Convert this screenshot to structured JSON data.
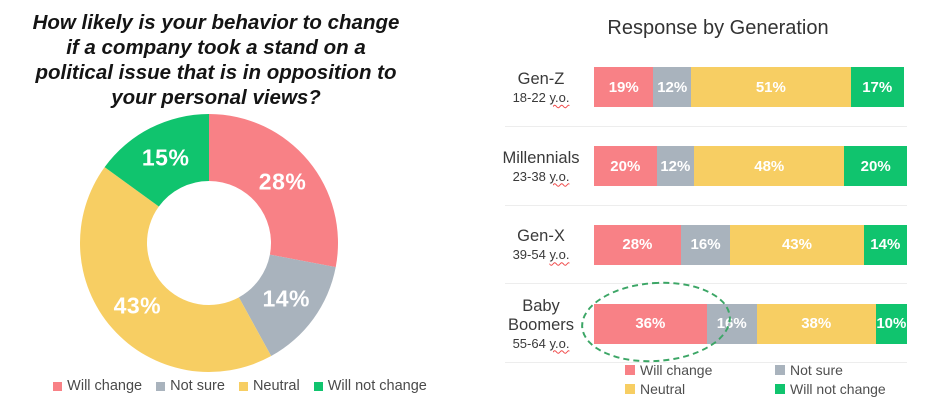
{
  "chart_data": [
    {
      "type": "pie",
      "donut": true,
      "title": "How likely is your behavior to change if a company took a stand on a political issue that is in opposition to your personal views?",
      "title_lines": [
        "How likely is your behavior to change",
        "if a company took a stand on a",
        "political issue that is in opposition to",
        "your personal views?"
      ],
      "labels": [
        "Will change",
        "Not sure",
        "Neutral",
        "Will not change"
      ],
      "values": [
        28,
        14,
        43,
        15
      ],
      "value_labels": [
        "28%",
        "14%",
        "43%",
        "15%"
      ],
      "colors": [
        "#F88186",
        "#A9B3BD",
        "#F7CE63",
        "#10C46E"
      ],
      "start_angle_deg": 0,
      "direction": "clockwise",
      "legend_position": "bottom"
    },
    {
      "type": "bar",
      "stacked": true,
      "orientation": "horizontal",
      "title": "Response by Generation",
      "categories": [
        "Gen-Z",
        "Millennials",
        "Gen-X",
        "Baby Boomers"
      ],
      "category_sublabels": [
        "18-22 y.o.",
        "23-38 y.o.",
        "39-54 y.o.",
        "55-64 y.o."
      ],
      "series": [
        {
          "name": "Will change",
          "color": "#F88186",
          "values": [
            19,
            20,
            28,
            36
          ]
        },
        {
          "name": "Not sure",
          "color": "#A9B3BD",
          "values": [
            12,
            12,
            16,
            16
          ]
        },
        {
          "name": "Neutral",
          "color": "#F7CE63",
          "values": [
            51,
            48,
            43,
            38
          ]
        },
        {
          "name": "Will not change",
          "color": "#10C46E",
          "values": [
            17,
            20,
            14,
            10
          ]
        }
      ],
      "xlim": [
        0,
        100
      ],
      "legend_position": "bottom",
      "annotation": {
        "shape": "dashed-ellipse",
        "target_category": "Baby Boomers",
        "target_series": "Will change",
        "color": "#3CA666"
      }
    }
  ],
  "ui": {
    "divider_color": "#ededed",
    "squiggle_color": "#f04b4b"
  }
}
